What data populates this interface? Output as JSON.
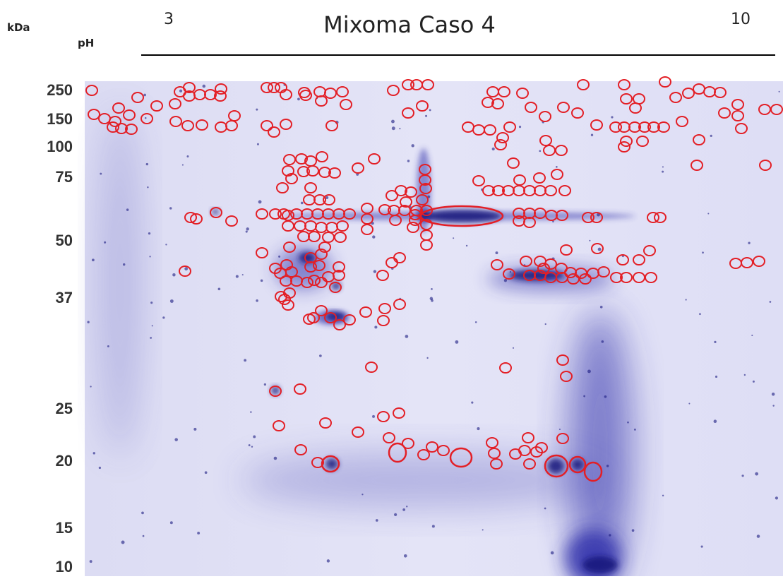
{
  "header": {
    "units_label": "kDa",
    "ph_label": "pH",
    "ph_start": "3",
    "title": "Mixoma Caso 4",
    "ph_end": "10"
  },
  "mw_markers": [
    "250",
    "150",
    "100",
    "75",
    "50",
    "37",
    "25",
    "20",
    "15",
    "10"
  ]
}
